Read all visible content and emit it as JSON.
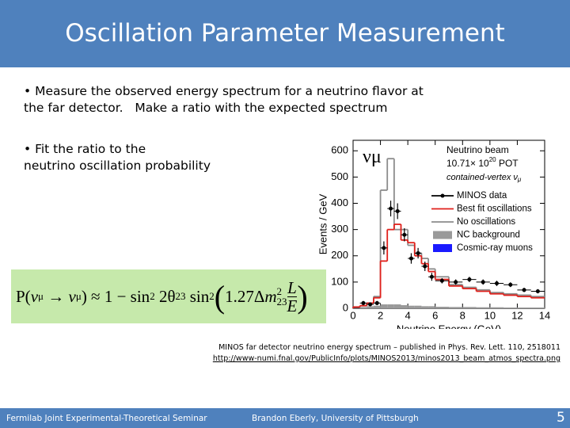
{
  "header": {
    "title": "Oscillation Parameter Measurement"
  },
  "bullets": [
    {
      "lines": [
        "• Measure the observed energy spectrum for a neutrino flavor at",
        "the far detector.   Make a ratio with the expected spectrum"
      ]
    },
    {
      "lines": [
        "• Fit the ratio to the",
        "neutrino oscillation probability"
      ]
    }
  ],
  "formula": {
    "parts": [
      "P(",
      "ν",
      "μ",
      " → ",
      "ν",
      "μ",
      ") ≈ 1 − sin",
      "2",
      " 2θ",
      "23",
      " sin",
      "2",
      "1.27Δ",
      "m",
      "2",
      "23",
      "L",
      "E"
    ]
  },
  "chart_data": {
    "type": "histogram",
    "xlabel": "Neutrino Energy (GeV)",
    "ylabel": "Events / GeV",
    "annotations": {
      "flavor": [
        "ν",
        "μ"
      ],
      "beam": "Neutrino beam",
      "pot": [
        "10.71× 10",
        "20",
        " POT"
      ],
      "sample": [
        "contained-vertex ν",
        "μ"
      ]
    },
    "bins": [
      0,
      0.5,
      1,
      1.5,
      2,
      2.5,
      3,
      3.5,
      4,
      4.5,
      5,
      5.5,
      6,
      7,
      8,
      9,
      10,
      11,
      12,
      13,
      14
    ],
    "xlim": [
      0,
      14
    ],
    "xticks": [
      0,
      2,
      4,
      6,
      8,
      10,
      12,
      14
    ],
    "ylim": [
      0,
      640
    ],
    "yticks": [
      0,
      100,
      200,
      300,
      400,
      500,
      600
    ],
    "series": [
      {
        "name": "Cosmic-ray muons",
        "style": "filled",
        "color": "#1a1aff",
        "values": [
          0,
          1,
          1,
          1,
          1,
          1,
          1,
          1,
          1,
          1,
          1,
          1,
          1,
          1,
          1,
          1,
          1,
          1,
          1,
          1
        ]
      },
      {
        "name": "NC background",
        "style": "filled",
        "color": "#9a9a9a",
        "values": [
          0,
          5,
          8,
          10,
          15,
          15,
          15,
          12,
          10,
          10,
          8,
          8,
          6,
          5,
          5,
          4,
          4,
          3,
          3,
          3
        ]
      },
      {
        "name": "No oscillations",
        "style": "step",
        "color": "#8c8c8c",
        "values": [
          5,
          10,
          20,
          45,
          450,
          570,
          300,
          300,
          240,
          210,
          190,
          150,
          120,
          90,
          80,
          70,
          60,
          55,
          50,
          45
        ]
      },
      {
        "name": "Best fit oscillations",
        "style": "step",
        "color": "#e0201b",
        "values": [
          5,
          10,
          20,
          40,
          180,
          300,
          320,
          260,
          250,
          200,
          170,
          140,
          110,
          85,
          75,
          65,
          55,
          50,
          45,
          40
        ]
      },
      {
        "name": "MINOS data",
        "style": "points",
        "color": "#000000",
        "values": [
          null,
          20,
          15,
          20,
          230,
          380,
          370,
          280,
          190,
          210,
          160,
          120,
          105,
          100,
          110,
          100,
          95,
          90,
          70,
          65
        ],
        "errors": [
          null,
          8,
          7,
          8,
          25,
          30,
          30,
          25,
          20,
          20,
          18,
          15,
          10,
          10,
          10,
          10,
          10,
          9,
          8,
          8
        ]
      }
    ],
    "legend_order": [
      4,
      3,
      2,
      1,
      0
    ]
  },
  "caption": {
    "lines": [
      "MINOS far detector neutrino energy spectrum – published in Phys. Rev. Lett. 110, 2518011",
      "http://www-numi.fnal.gov/PublicInfo/plots/MINOS2013/minos2013_beam_atmos_spectra.png"
    ]
  },
  "footer": {
    "left": "Fermilab Joint Experimental-Theoretical Seminar",
    "center": "Brandon Eberly, University of Pittsburgh",
    "page": "5"
  }
}
